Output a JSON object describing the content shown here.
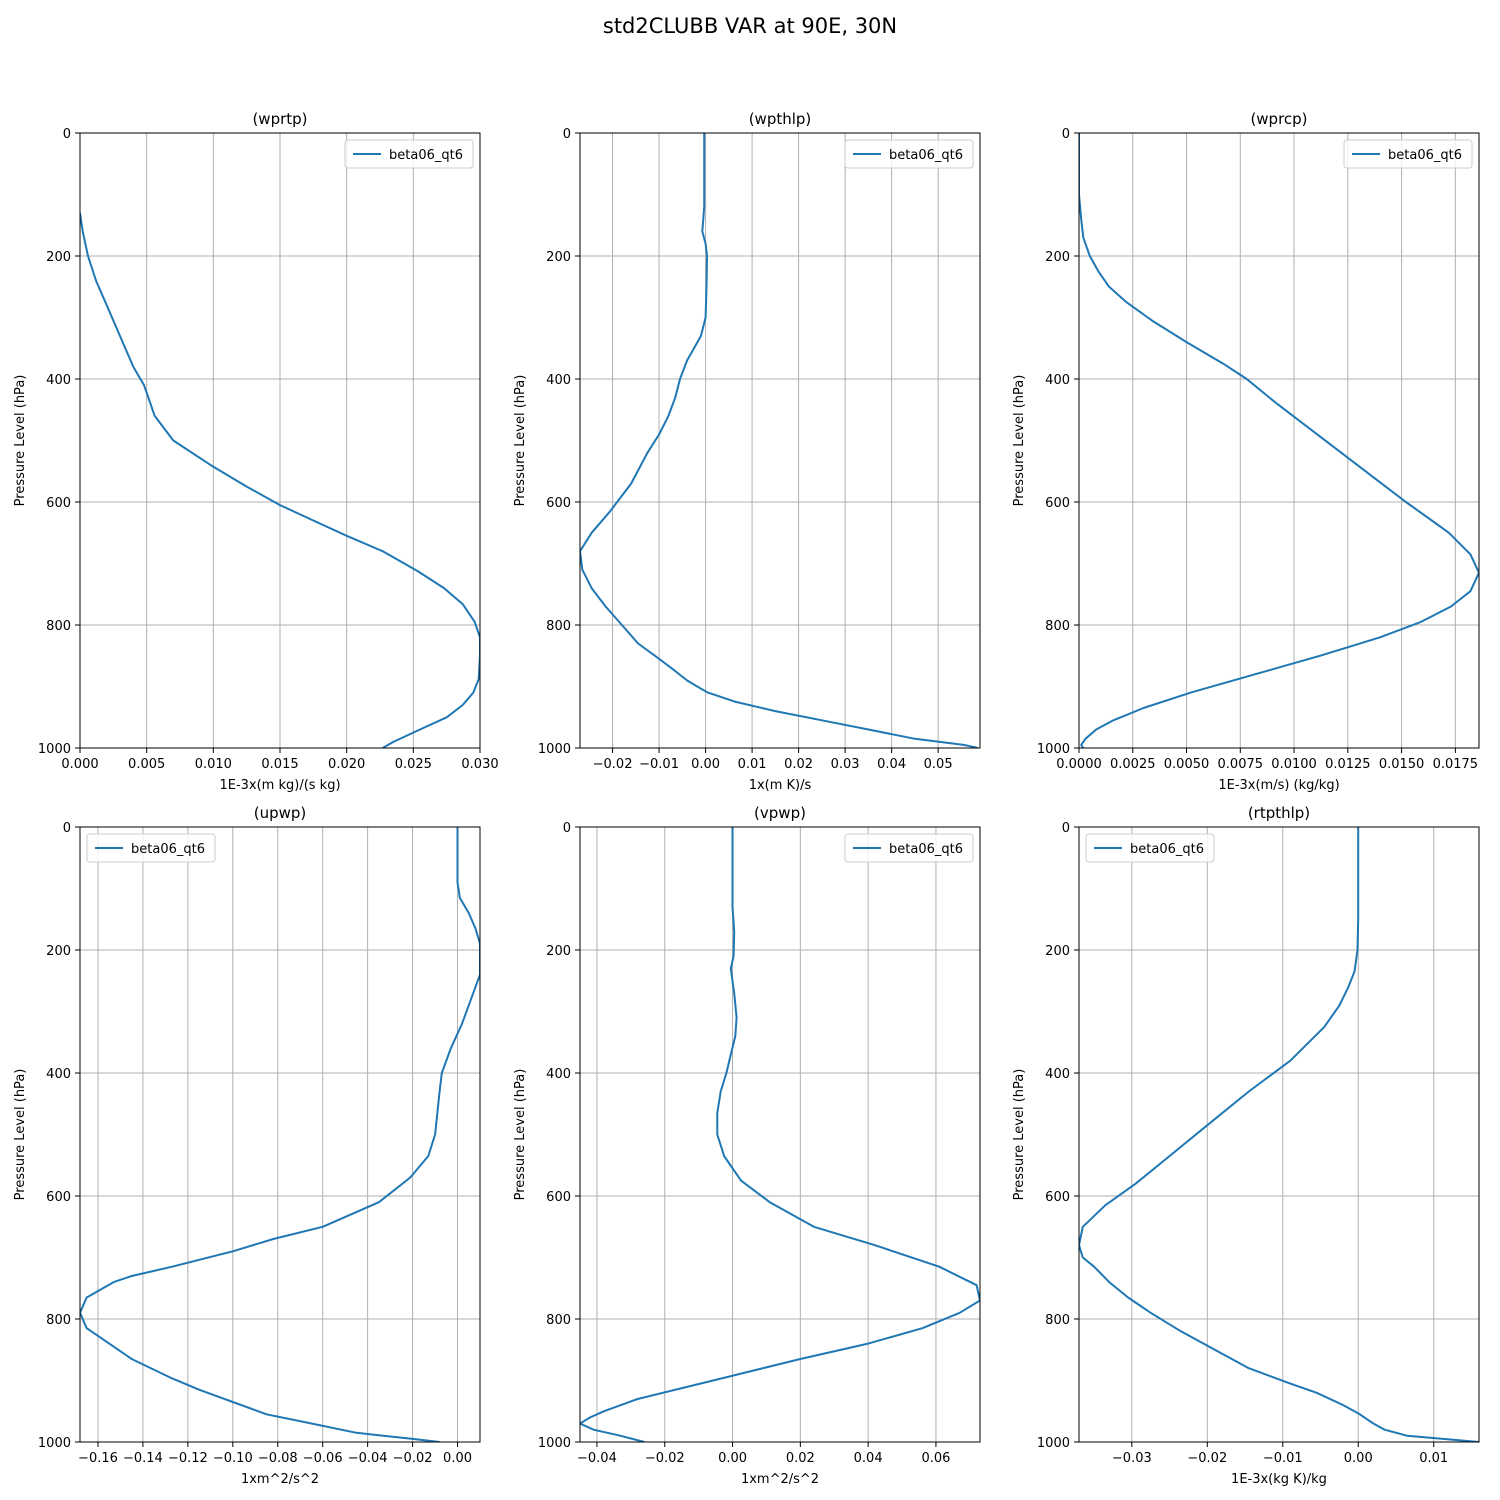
{
  "figure": {
    "title": "std2CLUBB VAR at 90E, 30N"
  },
  "style": {
    "line_color": "#1f77b4",
    "grid_color": "#b0b0b0"
  },
  "chart_data": [
    {
      "type": "line",
      "title": "(wprtp)",
      "xlabel": "1E-3x(m kg)/(s kg)",
      "ylabel": "Pressure Level (hPa)",
      "xlim": [
        0,
        0.03
      ],
      "ylim": [
        1000,
        0
      ],
      "xticks": [
        0,
        0.005,
        0.01,
        0.015,
        0.02,
        0.025,
        0.03
      ],
      "xtick_labels": [
        "0.000",
        "0.005",
        "0.010",
        "0.015",
        "0.020",
        "0.025",
        "0.030"
      ],
      "yticks": [
        0,
        200,
        400,
        600,
        800,
        1000
      ],
      "ytick_labels": [
        "0",
        "200",
        "400",
        "600",
        "800",
        "1000"
      ],
      "grid": true,
      "legend": "upper-right",
      "series": [
        {
          "name": "beta06_qt6",
          "x": [
            0,
            0.0002,
            0.0006,
            0.0012,
            0.002,
            0.003,
            0.004,
            0.0048,
            0.0056,
            0.007,
            0.0098,
            0.0125,
            0.015,
            0.0175,
            0.02,
            0.0227,
            0.0253,
            0.0273,
            0.0287,
            0.0296,
            0.03,
            0.03,
            0.0299,
            0.0295,
            0.0287,
            0.0275,
            0.0255,
            0.0235,
            0.0227
          ],
          "y": [
            130,
            160,
            200,
            240,
            280,
            330,
            380,
            410,
            460,
            500,
            540,
            575,
            605,
            630,
            655,
            680,
            712,
            740,
            766,
            795,
            820,
            850,
            888,
            910,
            930,
            950,
            970,
            990,
            1000
          ]
        }
      ]
    },
    {
      "type": "line",
      "title": "(wpthlp)",
      "xlabel": "1x(m K)/s",
      "ylabel": "Pressure Level (hPa)",
      "xlim": [
        -0.027,
        0.059
      ],
      "ylim": [
        1000,
        0
      ],
      "xticks": [
        -0.02,
        -0.01,
        0,
        0.01,
        0.02,
        0.03,
        0.04,
        0.05
      ],
      "xtick_labels": [
        "−0.02",
        "−0.01",
        "0.00",
        "0.01",
        "0.02",
        "0.03",
        "0.04",
        "0.05"
      ],
      "yticks": [
        0,
        200,
        400,
        600,
        800,
        1000
      ],
      "ytick_labels": [
        "0",
        "200",
        "400",
        "600",
        "800",
        "1000"
      ],
      "grid": true,
      "legend": "upper-right",
      "series": [
        {
          "name": "beta06_qt6",
          "x": [
            -0.0003,
            -0.0003,
            -0.0003,
            -0.0005,
            -0.0007,
            0.0,
            0.0003,
            0.0002,
            0.0,
            -0.001,
            -0.0025,
            -0.004,
            -0.0055,
            -0.0065,
            -0.008,
            -0.01,
            -0.0125,
            -0.016,
            -0.0205,
            -0.0245,
            -0.027,
            -0.0265,
            -0.0245,
            -0.0215,
            -0.018,
            -0.0145,
            -0.01,
            -0.0065,
            -0.004,
            -0.0018,
            0.0005,
            0.0065,
            0.015,
            0.025,
            0.035,
            0.045,
            0.0555,
            0.0575,
            0.0585
          ],
          "y": [
            0,
            100,
            120,
            140,
            160,
            180,
            200,
            250,
            300,
            330,
            350,
            370,
            400,
            430,
            460,
            490,
            520,
            570,
            615,
            650,
            680,
            710,
            740,
            770,
            800,
            830,
            855,
            875,
            890,
            900,
            910,
            925,
            940,
            955,
            970,
            985,
            995,
            998,
            1000
          ]
        }
      ]
    },
    {
      "type": "line",
      "title": "(wprcp)",
      "xlabel": "1E-3x(m/s) (kg/kg)",
      "ylabel": "Pressure Level (hPa)",
      "xlim": [
        0,
        0.0186
      ],
      "ylim": [
        1000,
        0
      ],
      "xticks": [
        0,
        0.0025,
        0.005,
        0.0075,
        0.01,
        0.0125,
        0.015,
        0.0175
      ],
      "xtick_labels": [
        "0.0000",
        "0.0025",
        "0.0050",
        "0.0075",
        "0.0100",
        "0.0125",
        "0.0150",
        "0.0175"
      ],
      "yticks": [
        0,
        200,
        400,
        600,
        800,
        1000
      ],
      "ytick_labels": [
        "0",
        "200",
        "400",
        "600",
        "800",
        "1000"
      ],
      "grid": true,
      "legend": "upper-right",
      "series": [
        {
          "name": "beta06_qt6",
          "x": [
            0,
            0,
            0.0001,
            0.0002,
            0.0005,
            0.0009,
            0.0014,
            0.0022,
            0.0034,
            0.005,
            0.0067,
            0.0078,
            0.0092,
            0.0107,
            0.0122,
            0.0137,
            0.0152,
            0.0166,
            0.0172,
            0.0182,
            0.0186,
            0.0182,
            0.0173,
            0.0159,
            0.014,
            0.0112,
            0.0082,
            0.0052,
            0.003,
            0.0016,
            0.0008,
            0.0003,
            0.0001,
            0.0002
          ],
          "y": [
            0,
            100,
            140,
            170,
            200,
            225,
            250,
            275,
            305,
            340,
            375,
            400,
            440,
            480,
            520,
            560,
            600,
            635,
            650,
            685,
            715,
            745,
            770,
            795,
            820,
            850,
            880,
            910,
            935,
            955,
            970,
            985,
            995,
            1000
          ]
        }
      ]
    },
    {
      "type": "line",
      "title": "(upwp)",
      "xlabel": "1xm^2/s^2",
      "ylabel": "Pressure Level (hPa)",
      "xlim": [
        -0.168,
        0.01
      ],
      "ylim": [
        1000,
        0
      ],
      "xticks": [
        -0.16,
        -0.14,
        -0.12,
        -0.1,
        -0.08,
        -0.06,
        -0.04,
        -0.02,
        0
      ],
      "xtick_labels": [
        "−0.16",
        "−0.14",
        "−0.12",
        "−0.10",
        "−0.08",
        "−0.06",
        "−0.04",
        "−0.02",
        "0.00"
      ],
      "yticks": [
        0,
        200,
        400,
        600,
        800,
        1000
      ],
      "ytick_labels": [
        "0",
        "200",
        "400",
        "600",
        "800",
        "1000"
      ],
      "grid": true,
      "legend": "upper-left",
      "series": [
        {
          "name": "beta06_qt6",
          "x": [
            0,
            0,
            0.001,
            0.005,
            0.008,
            0.01,
            0.01,
            0.006,
            0.002,
            -0.003,
            -0.007,
            -0.008,
            -0.01,
            -0.013,
            -0.021,
            -0.035,
            -0.06,
            -0.082,
            -0.1,
            -0.127,
            -0.145,
            -0.153,
            -0.165,
            -0.168,
            -0.165,
            -0.155,
            -0.145,
            -0.128,
            -0.115,
            -0.1,
            -0.085,
            -0.065,
            -0.045,
            -0.02,
            -0.008
          ],
          "y": [
            0,
            90,
            115,
            140,
            165,
            190,
            240,
            280,
            320,
            360,
            400,
            430,
            500,
            535,
            570,
            610,
            650,
            670,
            690,
            715,
            730,
            740,
            765,
            790,
            815,
            840,
            865,
            895,
            915,
            935,
            955,
            970,
            985,
            995,
            1000
          ]
        }
      ]
    },
    {
      "type": "line",
      "title": "(vpwp)",
      "xlabel": "1xm^2/s^2",
      "ylabel": "Pressure Level (hPa)",
      "xlim": [
        -0.045,
        0.073
      ],
      "ylim": [
        1000,
        0
      ],
      "xticks": [
        -0.04,
        -0.02,
        0,
        0.02,
        0.04,
        0.06
      ],
      "xtick_labels": [
        "−0.04",
        "−0.02",
        "0.00",
        "0.02",
        "0.04",
        "0.06"
      ],
      "yticks": [
        0,
        200,
        400,
        600,
        800,
        1000
      ],
      "ytick_labels": [
        "0",
        "200",
        "400",
        "600",
        "800",
        "1000"
      ],
      "grid": true,
      "legend": "upper-right",
      "series": [
        {
          "name": "beta06_qt6",
          "x": [
            0,
            0,
            0,
            0.0005,
            0.0003,
            -0.0005,
            0.0005,
            0.0012,
            0.0008,
            -0.0005,
            -0.0018,
            -0.0035,
            -0.0045,
            -0.0045,
            -0.0025,
            0.0025,
            0.011,
            0.024,
            0.042,
            0.061,
            0.072,
            0.073,
            0.067,
            0.056,
            0.04,
            0.02,
            -0.002,
            -0.028,
            -0.038,
            -0.042,
            -0.045,
            -0.041,
            -0.033,
            -0.026
          ],
          "y": [
            0,
            100,
            130,
            170,
            210,
            230,
            270,
            310,
            340,
            370,
            400,
            430,
            465,
            500,
            535,
            575,
            610,
            650,
            680,
            715,
            745,
            770,
            790,
            815,
            840,
            865,
            895,
            930,
            950,
            960,
            970,
            980,
            990,
            1000
          ]
        }
      ]
    },
    {
      "type": "line",
      "title": "(rtpthlp)",
      "xlabel": "1E-3x(kg K)/kg",
      "ylabel": "Pressure Level (hPa)",
      "xlim": [
        -0.037,
        0.016
      ],
      "ylim": [
        1000,
        0
      ],
      "xticks": [
        -0.03,
        -0.02,
        -0.01,
        0,
        0.01
      ],
      "xtick_labels": [
        "−0.03",
        "−0.02",
        "−0.01",
        "0.00",
        "0.01"
      ],
      "yticks": [
        0,
        200,
        400,
        600,
        800,
        1000
      ],
      "ytick_labels": [
        "0",
        "200",
        "400",
        "600",
        "800",
        "1000"
      ],
      "grid": true,
      "legend": "upper-left",
      "series": [
        {
          "name": "beta06_qt6",
          "x": [
            0,
            0,
            -0.0001,
            -0.0005,
            -0.0013,
            -0.0025,
            -0.0045,
            -0.009,
            -0.0145,
            -0.0205,
            -0.0255,
            -0.0295,
            -0.0335,
            -0.0365,
            -0.037,
            -0.0365,
            -0.035,
            -0.033,
            -0.0305,
            -0.0275,
            -0.0235,
            -0.019,
            -0.0145,
            -0.009,
            -0.0055,
            -0.002,
            0.0002,
            0.002,
            0.0035,
            0.0065,
            0.016
          ],
          "y": [
            0,
            150,
            200,
            235,
            260,
            290,
            325,
            380,
            430,
            490,
            540,
            580,
            615,
            650,
            680,
            700,
            715,
            740,
            765,
            790,
            820,
            850,
            880,
            905,
            920,
            940,
            955,
            970,
            980,
            990,
            1000
          ]
        }
      ]
    }
  ]
}
